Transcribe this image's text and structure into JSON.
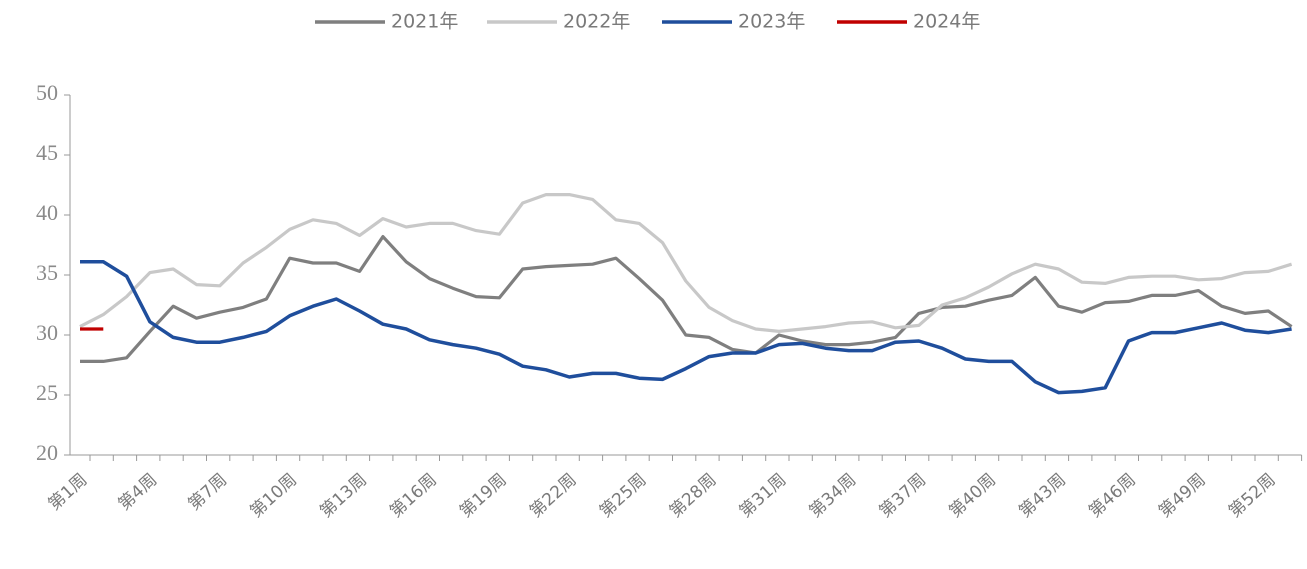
{
  "chart_data": {
    "type": "line",
    "categories": [
      "第1周",
      null,
      null,
      "第4周",
      null,
      null,
      "第7周",
      null,
      null,
      "第10周",
      null,
      null,
      "第13周",
      null,
      null,
      "第16周",
      null,
      null,
      "第19周",
      null,
      null,
      "第22周",
      null,
      null,
      "第25周",
      null,
      null,
      "第28周",
      null,
      null,
      "第31周",
      null,
      null,
      "第34周",
      null,
      null,
      "第37周",
      null,
      null,
      "第40周",
      null,
      null,
      "第43周",
      null,
      null,
      "第46周",
      null,
      null,
      "第49周",
      null,
      null,
      "第52周",
      null
    ],
    "series": [
      {
        "name": "2021年",
        "color": "#7f7f7f",
        "values": [
          27.8,
          27.8,
          28.1,
          30.3,
          32.4,
          31.4,
          31.9,
          32.3,
          33.0,
          36.4,
          36.0,
          36.0,
          35.3,
          38.2,
          36.1,
          34.7,
          33.9,
          33.2,
          33.1,
          35.5,
          35.7,
          35.8,
          35.9,
          36.4,
          34.7,
          32.9,
          30.0,
          29.8,
          28.8,
          28.5,
          30.0,
          29.5,
          29.2,
          29.2,
          29.4,
          29.8,
          31.8,
          32.3,
          32.4,
          32.9,
          33.3,
          34.8,
          32.4,
          31.9,
          32.7,
          32.8,
          33.3,
          33.3,
          33.7,
          32.4,
          31.8,
          32.0,
          30.7
        ]
      },
      {
        "name": "2022年",
        "color": "#c8c8c8",
        "values": [
          30.7,
          31.7,
          33.2,
          35.2,
          35.5,
          34.2,
          34.1,
          36.0,
          37.3,
          38.8,
          39.6,
          39.3,
          38.3,
          39.7,
          39.0,
          39.3,
          39.3,
          38.7,
          38.4,
          41.0,
          41.7,
          41.7,
          41.3,
          39.6,
          39.3,
          37.7,
          34.5,
          32.3,
          31.2,
          30.5,
          30.3,
          30.5,
          30.7,
          31.0,
          31.1,
          30.6,
          30.8,
          32.5,
          33.1,
          34.0,
          35.1,
          35.9,
          35.5,
          34.4,
          34.3,
          34.8,
          34.9,
          34.9,
          34.6,
          34.7,
          35.2,
          35.3,
          35.9
        ]
      },
      {
        "name": "2023年",
        "color": "#1f4e9c",
        "values": [
          36.1,
          36.1,
          34.9,
          31.1,
          29.8,
          29.4,
          29.4,
          29.8,
          30.3,
          31.6,
          32.4,
          33.0,
          32.0,
          30.9,
          30.5,
          29.6,
          29.2,
          28.9,
          28.4,
          27.4,
          27.1,
          26.5,
          26.8,
          26.8,
          26.4,
          26.3,
          27.2,
          28.2,
          28.5,
          28.5,
          29.2,
          29.3,
          28.9,
          28.7,
          28.7,
          29.4,
          29.5,
          28.9,
          28.0,
          27.8,
          27.8,
          26.1,
          25.2,
          25.3,
          25.6,
          29.5,
          30.2,
          30.2,
          30.6,
          31.0,
          30.4,
          30.2,
          30.5
        ]
      },
      {
        "name": "2024年",
        "color": "#c00000",
        "values": [
          30.5,
          30.5,
          null,
          null,
          null,
          null,
          null,
          null,
          null,
          null,
          null,
          null,
          null,
          null,
          null,
          null,
          null,
          null,
          null,
          null,
          null,
          null,
          null,
          null,
          null,
          null,
          null,
          null,
          null,
          null,
          null,
          null,
          null,
          null,
          null,
          null,
          null,
          null,
          null,
          null,
          null,
          null,
          null,
          null,
          null,
          null,
          null,
          null,
          null,
          null,
          null,
          null,
          null
        ]
      }
    ],
    "ylim": [
      20,
      50
    ],
    "yticks": [
      20,
      25,
      30,
      35,
      40,
      45,
      50
    ],
    "legend": "top"
  }
}
